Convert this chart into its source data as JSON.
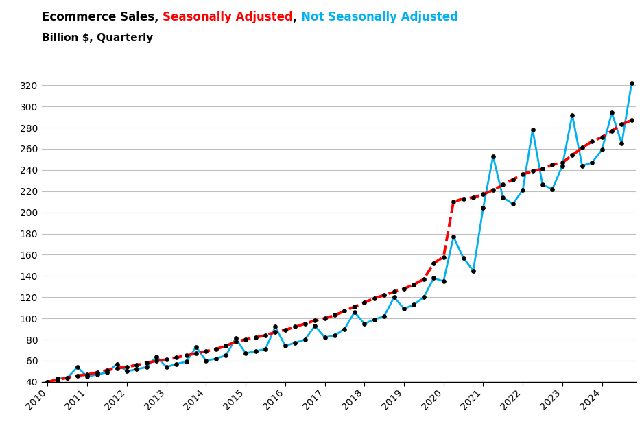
{
  "title_line1_parts": [
    {
      "text": "Ecommerce Sales, ",
      "color": "#000000"
    },
    {
      "text": "Seasonally Adjusted",
      "color": "#FF0000"
    },
    {
      "text": ", ",
      "color": "#000000"
    },
    {
      "text": "Not Seasonally Adjusted",
      "color": "#00B0F0"
    }
  ],
  "subtitle": "Billion $, Quarterly",
  "background_color": "#FFFFFF",
  "grid_color": "#BFBFBF",
  "ylim": [
    40,
    330
  ],
  "yticks": [
    40,
    60,
    80,
    100,
    120,
    140,
    160,
    180,
    200,
    220,
    240,
    260,
    280,
    300,
    320
  ],
  "start_year": 2010,
  "end_year": 2024,
  "seasonally_adjusted": [
    40.0,
    42.0,
    44.0,
    46.0,
    47.0,
    49.0,
    51.0,
    53.0,
    54.0,
    56.0,
    58.0,
    60.0,
    61.0,
    63.0,
    65.0,
    67.0,
    69.0,
    71.0,
    74.0,
    78.0,
    80.0,
    82.0,
    84.0,
    87.0,
    89.0,
    92.0,
    95.0,
    98.0,
    100.0,
    103.0,
    107.0,
    111.0,
    115.0,
    119.0,
    122.0,
    125.0,
    128.0,
    132.0,
    137.0,
    152.0,
    158.0,
    210.0,
    213.0,
    214.0,
    217.0,
    221.0,
    226.0,
    231.0,
    236.0,
    239.0,
    241.0,
    245.0,
    247.0,
    254.0,
    261.0,
    267.0,
    271.0,
    277.0,
    283.0,
    287.0
  ],
  "not_seasonally_adjusted": [
    40.0,
    43.0,
    44.0,
    54.0,
    45.0,
    47.0,
    49.0,
    57.0,
    50.0,
    52.0,
    54.0,
    64.0,
    54.0,
    57.0,
    59.0,
    73.0,
    60.0,
    62.0,
    65.0,
    81.0,
    67.0,
    69.0,
    71.0,
    92.0,
    74.0,
    77.0,
    80.0,
    93.0,
    82.0,
    84.0,
    90.0,
    106.0,
    95.0,
    99.0,
    102.0,
    120.0,
    109.0,
    113.0,
    120.0,
    138.0,
    135.0,
    177.0,
    157.0,
    145.0,
    204.0,
    253.0,
    214.0,
    208.0,
    221.0,
    278.0,
    226.0,
    222.0,
    244.0,
    292.0,
    244.0,
    247.0,
    259.0,
    294.0,
    265.0,
    322.0
  ],
  "sa_color": "#FF0000",
  "nsa_color": "#00B0F0",
  "sa_linewidth": 2.8,
  "nsa_linewidth": 2.0,
  "marker_color": "#000000",
  "marker_size": 4,
  "fontsize_title": 12,
  "fontsize_subtitle": 11,
  "fontsize_ticks": 10
}
